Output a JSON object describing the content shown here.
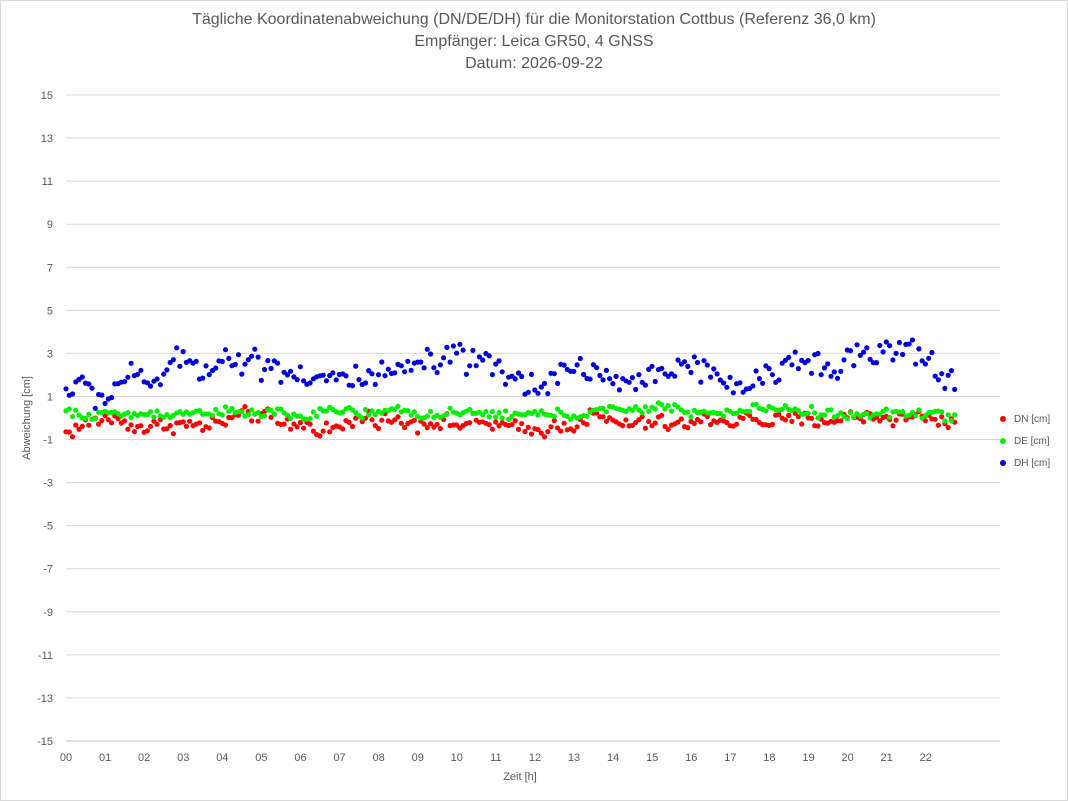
{
  "chart_data": {
    "type": "scatter",
    "title": "Tägliche Koordinatenabweichung (DN/DE/DH) für die Monitorstation Cottbus (Referenz 36,0 km)",
    "subtitle": "Empfänger: Leica GR50, 4 GNSS",
    "date_line": "Datum: 2026-09-22",
    "xlabel": "Zeit [h]",
    "ylabel": "Abweichung [cm]",
    "xlim": [
      0,
      23.9
    ],
    "ylim": [
      -15,
      15
    ],
    "x_ticks": [
      "00",
      "01",
      "02",
      "03",
      "04",
      "05",
      "06",
      "07",
      "08",
      "09",
      "10",
      "11",
      "12",
      "13",
      "14",
      "15",
      "16",
      "17",
      "18",
      "19",
      "20",
      "21",
      "22"
    ],
    "y_ticks": [
      "15",
      "13",
      "11",
      "9",
      "7",
      "5",
      "3",
      "1",
      "-1",
      "-3",
      "-5",
      "-7",
      "-9",
      "-11",
      "-13",
      "-15"
    ],
    "grid": "horizontal",
    "legend_position": "right",
    "x_sampling": {
      "start": 0,
      "step": 0.0833,
      "count": 274
    },
    "series": [
      {
        "name": "DN [cm]",
        "color": "#ff0000",
        "anchors": [
          [
            0,
            -0.7
          ],
          [
            0.5,
            -0.3
          ],
          [
            1,
            0.0
          ],
          [
            1.5,
            -0.2
          ],
          [
            2,
            -0.5
          ],
          [
            2.5,
            -0.3
          ],
          [
            3,
            -0.3
          ],
          [
            3.5,
            -0.4
          ],
          [
            4,
            -0.2
          ],
          [
            4.5,
            0.1
          ],
          [
            5,
            0.2
          ],
          [
            5.5,
            -0.3
          ],
          [
            6,
            -0.3
          ],
          [
            6.5,
            -0.5
          ],
          [
            7,
            -0.5
          ],
          [
            7.5,
            0.0
          ],
          [
            8,
            0.0
          ],
          [
            8.5,
            -0.2
          ],
          [
            9,
            -0.2
          ],
          [
            9.5,
            -0.2
          ],
          [
            10,
            -0.3
          ],
          [
            10.5,
            -0.2
          ],
          [
            11,
            -0.3
          ],
          [
            11.5,
            -0.5
          ],
          [
            12,
            -0.6
          ],
          [
            12.5,
            -0.4
          ],
          [
            13,
            -0.3
          ],
          [
            13.5,
            0.1
          ],
          [
            14,
            -0.2
          ],
          [
            14.5,
            -0.3
          ],
          [
            15,
            -0.2
          ],
          [
            15.5,
            -0.3
          ],
          [
            16,
            -0.3
          ],
          [
            16.5,
            0.0
          ],
          [
            17,
            -0.2
          ],
          [
            17.5,
            0.0
          ],
          [
            18,
            -0.2
          ],
          [
            18.5,
            -0.1
          ],
          [
            19,
            -0.1
          ],
          [
            19.5,
            -0.1
          ],
          [
            20,
            0.0
          ],
          [
            20.5,
            0.1
          ],
          [
            21,
            0.0
          ],
          [
            21.5,
            0.0
          ],
          [
            22,
            0.1
          ],
          [
            22.5,
            -0.2
          ],
          [
            22.8,
            -0.1
          ]
        ],
        "noise": 0.25
      },
      {
        "name": "DE [cm]",
        "color": "#00ee00",
        "anchors": [
          [
            0,
            0.3
          ],
          [
            0.5,
            0.0
          ],
          [
            1,
            0.3
          ],
          [
            1.5,
            0.1
          ],
          [
            2,
            0.2
          ],
          [
            2.5,
            0.2
          ],
          [
            3,
            0.2
          ],
          [
            3.5,
            0.3
          ],
          [
            4,
            0.3
          ],
          [
            4.5,
            0.2
          ],
          [
            5,
            0.2
          ],
          [
            5.5,
            0.3
          ],
          [
            6,
            0.0
          ],
          [
            6.5,
            0.2
          ],
          [
            7,
            0.4
          ],
          [
            7.5,
            0.2
          ],
          [
            8,
            0.2
          ],
          [
            8.5,
            0.4
          ],
          [
            9,
            0.2
          ],
          [
            9.5,
            0.1
          ],
          [
            10,
            0.2
          ],
          [
            10.5,
            0.2
          ],
          [
            11,
            0.2
          ],
          [
            11.5,
            0.1
          ],
          [
            12,
            0.2
          ],
          [
            12.5,
            0.2
          ],
          [
            13,
            0.1
          ],
          [
            13.5,
            0.3
          ],
          [
            14,
            0.4
          ],
          [
            14.5,
            0.3
          ],
          [
            15,
            0.5
          ],
          [
            15.5,
            0.5
          ],
          [
            16,
            0.3
          ],
          [
            16.5,
            0.2
          ],
          [
            17,
            0.2
          ],
          [
            17.5,
            0.4
          ],
          [
            18,
            0.5
          ],
          [
            18.5,
            0.4
          ],
          [
            19,
            0.3
          ],
          [
            19.5,
            0.2
          ],
          [
            20,
            0.1
          ],
          [
            20.5,
            0.1
          ],
          [
            21,
            0.2
          ],
          [
            21.5,
            0.3
          ],
          [
            22,
            0.2
          ],
          [
            22.5,
            0.1
          ],
          [
            22.8,
            0.1
          ]
        ],
        "noise": 0.15
      },
      {
        "name": "DH [cm]",
        "color": "#0000dd",
        "anchors": [
          [
            0,
            1.3
          ],
          [
            0.5,
            1.5
          ],
          [
            1,
            0.8
          ],
          [
            1.5,
            2.0
          ],
          [
            2,
            1.6
          ],
          [
            2.5,
            2.0
          ],
          [
            3,
            2.8
          ],
          [
            3.5,
            2.3
          ],
          [
            4,
            2.8
          ],
          [
            4.5,
            2.6
          ],
          [
            5,
            2.6
          ],
          [
            5.5,
            2.3
          ],
          [
            6,
            2.0
          ],
          [
            6.5,
            1.9
          ],
          [
            7,
            1.8
          ],
          [
            7.5,
            1.8
          ],
          [
            8,
            1.8
          ],
          [
            8.5,
            2.1
          ],
          [
            9,
            2.5
          ],
          [
            9.5,
            2.5
          ],
          [
            10,
            2.8
          ],
          [
            10.5,
            2.5
          ],
          [
            11,
            2.3
          ],
          [
            11.5,
            1.7
          ],
          [
            12,
            1.5
          ],
          [
            12.5,
            2.0
          ],
          [
            13,
            2.3
          ],
          [
            13.5,
            2.3
          ],
          [
            14,
            1.7
          ],
          [
            14.5,
            1.5
          ],
          [
            15,
            2.1
          ],
          [
            15.5,
            2.4
          ],
          [
            16,
            2.5
          ],
          [
            16.5,
            1.8
          ],
          [
            17,
            1.6
          ],
          [
            17.5,
            1.5
          ],
          [
            18,
            1.8
          ],
          [
            18.5,
            2.6
          ],
          [
            19,
            2.7
          ],
          [
            19.5,
            2.6
          ],
          [
            20,
            2.7
          ],
          [
            20.5,
            2.9
          ],
          [
            21,
            3.0
          ],
          [
            21.5,
            3.2
          ],
          [
            22,
            2.6
          ],
          [
            22.5,
            2.0
          ],
          [
            22.8,
            1.5
          ]
        ],
        "noise": 0.45
      }
    ]
  }
}
